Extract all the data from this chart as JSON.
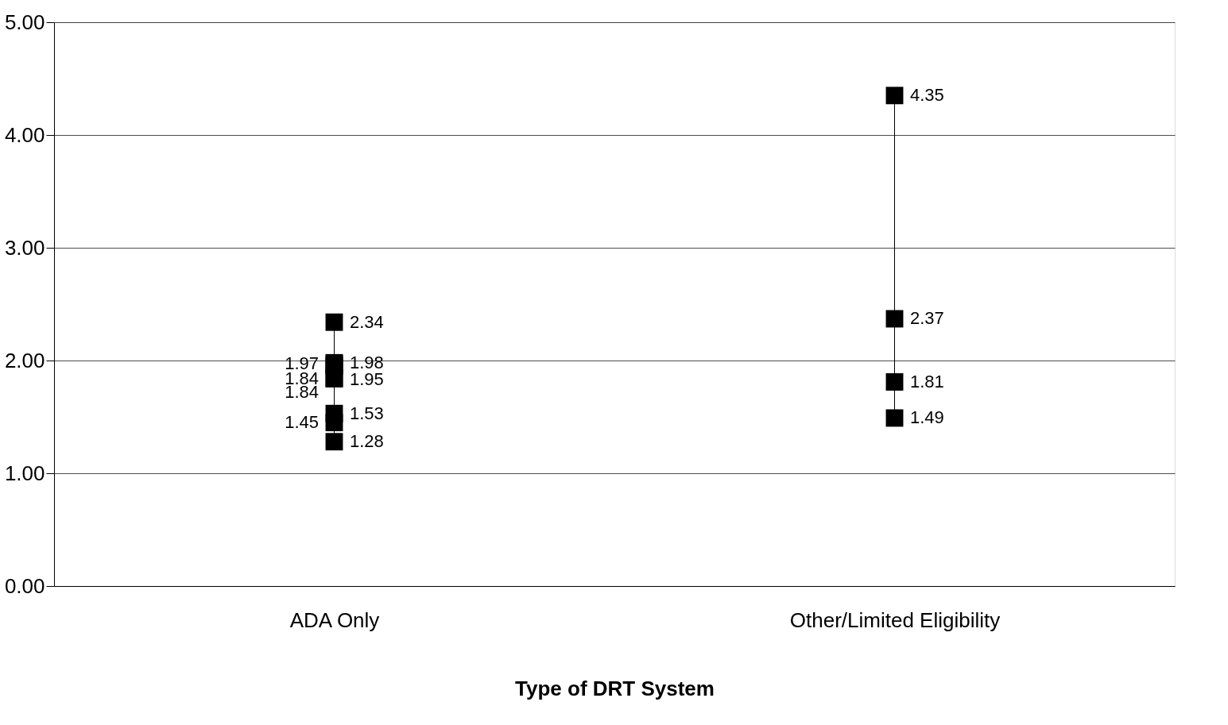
{
  "chart_data": {
    "type": "scatter",
    "categories": [
      "ADA Only",
      "Other/Limited Eligibility"
    ],
    "xlabel": "Type of DRT System",
    "ylim": [
      0,
      5
    ],
    "yticks": [
      {
        "value": 0,
        "label": "0.00"
      },
      {
        "value": 1,
        "label": "1.00"
      },
      {
        "value": 2,
        "label": "2.00"
      },
      {
        "value": 3,
        "label": "3.00"
      },
      {
        "value": 4,
        "label": "4.00"
      },
      {
        "value": 5,
        "label": "5.00"
      }
    ],
    "grid": "y",
    "marker": "square",
    "series": [
      {
        "type": "line",
        "marker": "none",
        "color": "#000000",
        "x": [
          "ADA Only",
          "ADA Only"
        ],
        "values": [
          1.28,
          2.34
        ]
      },
      {
        "type": "line",
        "marker": "none",
        "color": "#000000",
        "x": [
          "Other/Limited Eligibility",
          "Other/Limited Eligibility"
        ],
        "values": [
          1.49,
          4.35
        ]
      },
      {
        "color": "#000000",
        "x": [
          "ADA Only",
          "ADA Only",
          "ADA Only",
          "ADA Only",
          "ADA Only",
          "ADA Only",
          "ADA Only",
          "ADA Only",
          "ADA Only",
          "Other/Limited Eligibility",
          "Other/Limited Eligibility",
          "Other/Limited Eligibility",
          "Other/Limited Eligibility"
        ],
        "values": [
          2.34,
          1.95,
          1.97,
          1.98,
          1.84,
          1.84,
          1.53,
          1.45,
          1.28,
          4.35,
          2.37,
          1.81,
          1.49
        ],
        "value_labels": [
          "2.34",
          "1.95",
          "1.97",
          "1.98",
          "1.84",
          "1.84",
          "1.53",
          "1.45",
          "1.28",
          "4.35",
          "2.37",
          "1.81",
          "1.49"
        ]
      }
    ]
  }
}
